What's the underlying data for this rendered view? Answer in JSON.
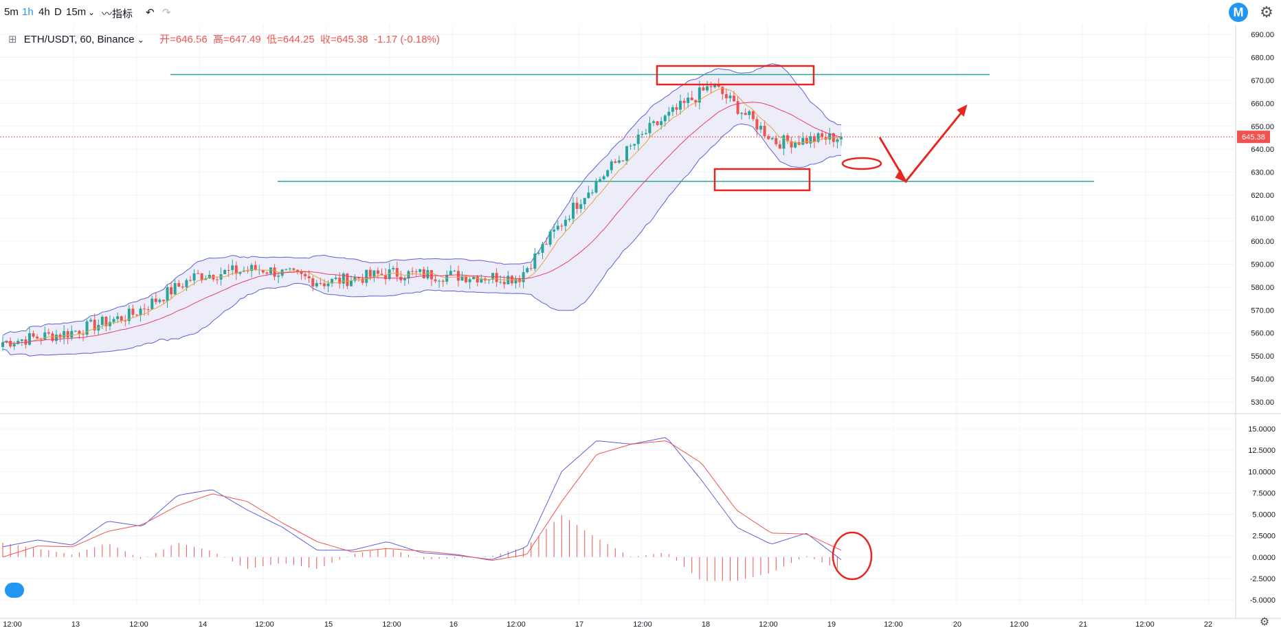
{
  "toolbar": {
    "intervals": [
      "5m",
      "1h",
      "4h",
      "D",
      "15m"
    ],
    "active_interval": "1h",
    "indicators_label": "指标",
    "undo_icon": "undo-icon",
    "redo_icon": "redo-icon",
    "settings_icon": "gear-icon",
    "logo_letter": "M"
  },
  "legend": {
    "symbol": "ETH/USDT, 60, Binance",
    "open": "开=646.56",
    "high": "高=647.49",
    "low": "低=644.25",
    "close": "收=645.38",
    "change": "-1.17 (-0.18%)"
  },
  "colors": {
    "up": "#26a69a",
    "down": "#ef5350",
    "band": "#5b5fd6",
    "band_fill": "#e8e8f7",
    "ma_fast": "#e8a33d",
    "ma_slow": "#e63e73",
    "macd": "#5b5fd6",
    "signal": "#ef5350",
    "level_line": "#26a69a",
    "annotation": "#e8261f"
  },
  "chart_data": [
    {
      "type": "candlestick",
      "price_axis": {
        "ylim": [
          525,
          695
        ],
        "ticks": [
          690,
          680,
          670,
          660,
          650,
          640,
          630,
          620,
          610,
          600,
          590,
          580,
          570,
          560,
          550,
          540,
          530
        ],
        "tick_labels": [
          "690.00",
          "680.00",
          "670.00",
          "660.00",
          "650.00",
          "640.00",
          "630.00",
          "620.00",
          "610.00",
          "600.00",
          "590.00",
          "580.00",
          "570.00",
          "560.00",
          "550.00",
          "540.00",
          "530.00"
        ]
      },
      "last_price_label": "645.38",
      "last_price": 645.38,
      "time_axis": {
        "labels": [
          "12:00",
          "13",
          "12:00",
          "14",
          "12:00",
          "15",
          "12:00",
          "16",
          "12:00",
          "17",
          "12:00",
          "18",
          "12:00",
          "19",
          "12:00",
          "20",
          "12:00",
          "21",
          "12:00",
          "22"
        ]
      },
      "levels": [
        672.5,
        626
      ],
      "indicators": [
        "bollinger_bands",
        "ma_fast",
        "ma_slow"
      ],
      "series_key_points": [
        {
          "x": "12 12:00",
          "close": 556
        },
        {
          "x": "13",
          "close": 560
        },
        {
          "x": "13 12:00",
          "close": 568
        },
        {
          "x": "14",
          "close": 585
        },
        {
          "x": "14 12:00",
          "close": 588
        },
        {
          "x": "15",
          "close": 582
        },
        {
          "x": "15 12:00",
          "close": 586
        },
        {
          "x": "16",
          "close": 585
        },
        {
          "x": "16 12:00",
          "close": 584
        },
        {
          "x": "17",
          "close": 620
        },
        {
          "x": "17 12:00",
          "close": 648
        },
        {
          "x": "18",
          "close": 668
        },
        {
          "x": "18 12:00",
          "close": 643
        },
        {
          "x": "19",
          "close": 645.38
        }
      ]
    },
    {
      "type": "macd",
      "ylim": [
        -5,
        16
      ],
      "ticks": [
        15,
        12.5,
        10,
        7.5,
        5,
        2.5,
        0,
        -2.5,
        -5
      ],
      "tick_labels": [
        "15.0000",
        "12.5000",
        "10.0000",
        "7.5000",
        "5.0000",
        "2.5000",
        "0.0000",
        "-2.5000",
        "-5.0000"
      ],
      "macd_key_points": [
        1.2,
        2.0,
        1.4,
        4.2,
        3.6,
        7.2,
        7.9,
        5.5,
        3.5,
        0.8,
        0.8,
        1.8,
        0.5,
        0.2,
        -0.3,
        1.2,
        10.0,
        13.6,
        13.2,
        14.0,
        9.0,
        3.5,
        1.5,
        2.8,
        -0.3
      ],
      "signal_key_points": [
        0.0,
        1.3,
        1.2,
        3.0,
        3.8,
        6.0,
        7.4,
        6.5,
        4.0,
        1.8,
        0.6,
        1.0,
        0.7,
        0.3,
        -0.4,
        0.3,
        6.5,
        12.0,
        13.2,
        13.6,
        11.0,
        5.5,
        2.8,
        2.7,
        0.8
      ]
    }
  ]
}
